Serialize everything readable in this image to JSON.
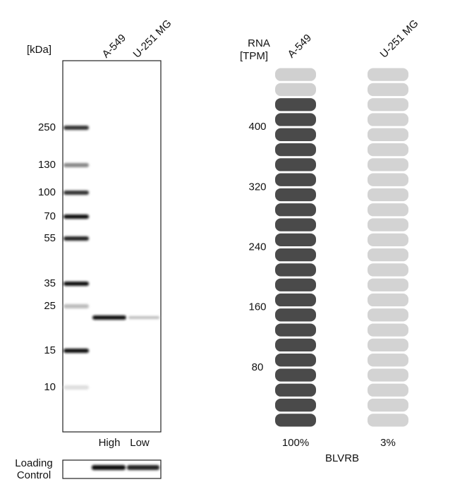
{
  "western_blot": {
    "unit_label": "[kDa]",
    "lanes": [
      "A-549",
      "U-251 MG"
    ],
    "markers": [
      "250",
      "130",
      "100",
      "70",
      "55",
      "35",
      "25",
      "15",
      "10"
    ],
    "lane_levels": [
      "High",
      "Low"
    ],
    "loading_control": [
      "Loading",
      "Control"
    ]
  },
  "rna": {
    "axis_label": [
      "RNA",
      "[TPM]"
    ],
    "ylim": [
      0,
      480
    ],
    "yticks": [
      80,
      160,
      240,
      320,
      400
    ],
    "columns": [
      {
        "name": "A-549",
        "tpm": 440,
        "percent": "100%"
      },
      {
        "name": "U-251 MG",
        "tpm": 13,
        "percent": "3%"
      }
    ],
    "gene": "BLVRB"
  }
}
